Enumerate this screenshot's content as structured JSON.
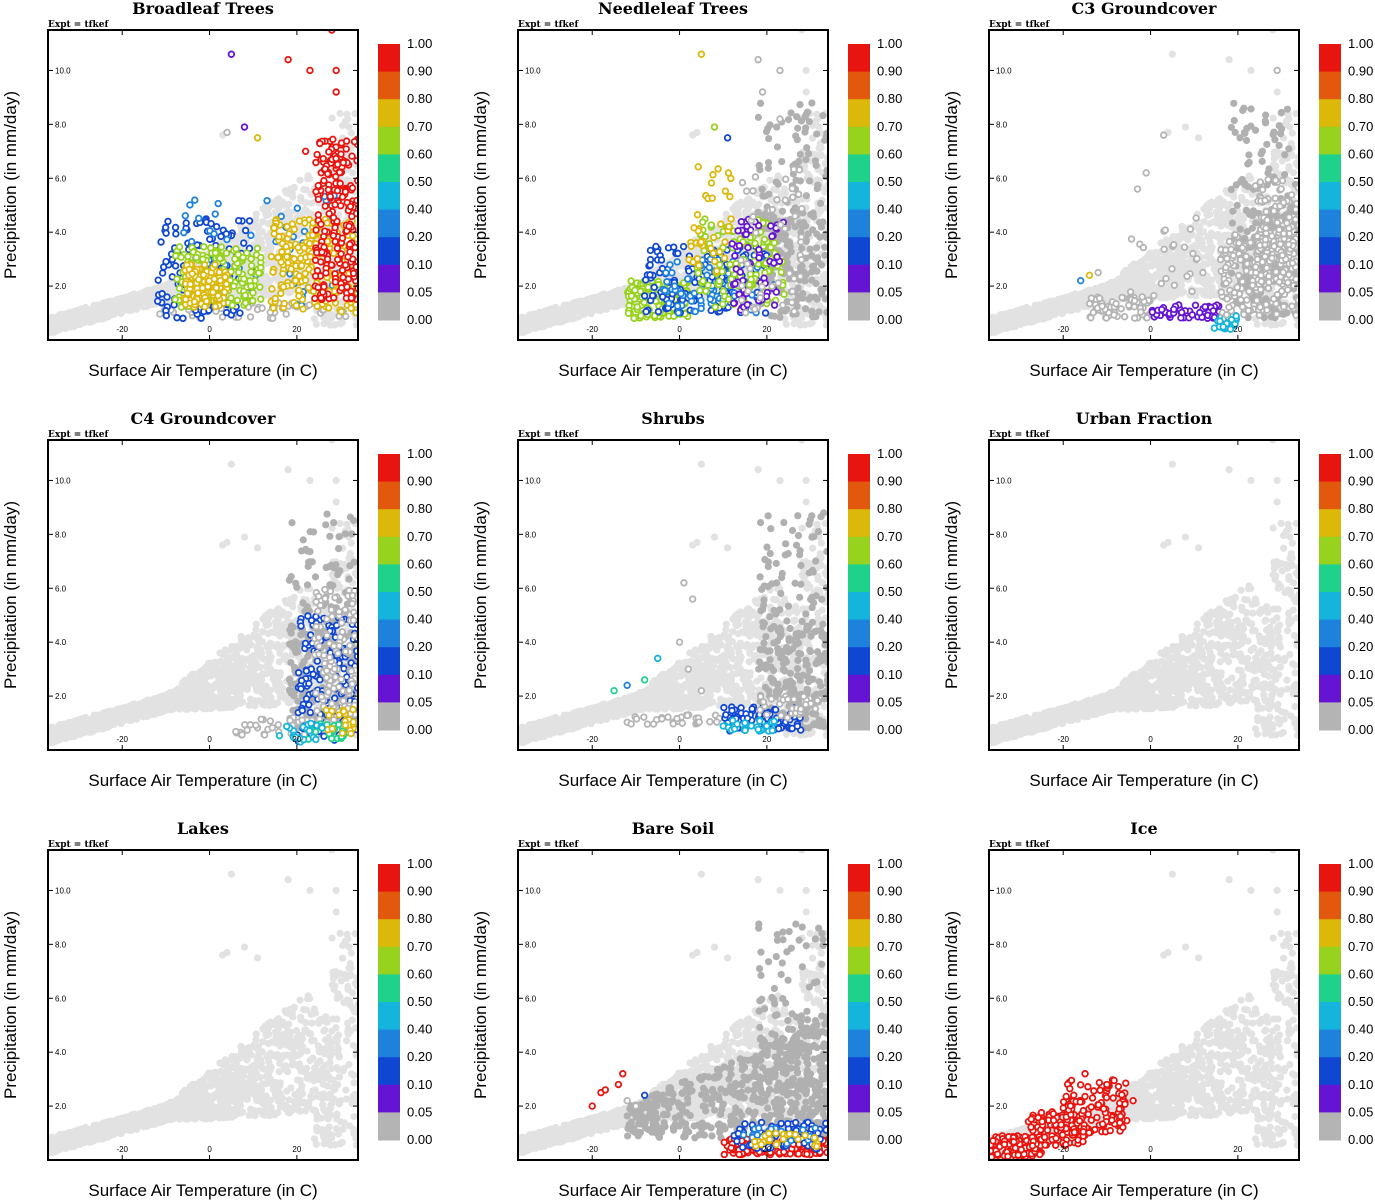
{
  "figure": {
    "expt_label": "Expt = tfkef",
    "colorbar": {
      "labels": [
        "1.00",
        "0.90",
        "0.80",
        "0.70",
        "0.60",
        "0.50",
        "0.40",
        "0.20",
        "0.10",
        "0.05",
        "0.00"
      ],
      "colors": [
        "#e8140f",
        "#e2580d",
        "#dcb80b",
        "#96d21e",
        "#1ed28c",
        "#14b4dc",
        "#1e82dc",
        "#0f46d2",
        "#6414d2",
        "#b4b4b4"
      ]
    }
  },
  "chart_data": [
    {
      "type": "scatter",
      "title": "Broadleaf Trees",
      "xlabel": "Surface Air Temperature (in C)",
      "ylabel": "Precipitation (in mm/day)",
      "xlim": [
        -37,
        34
      ],
      "ylim": [
        0,
        11.5
      ],
      "xticks": [
        "-20",
        "0",
        "20"
      ],
      "yticks": [
        "2.0",
        "4.0",
        "6.0",
        "8.0",
        "10.0"
      ],
      "colored_clusters": [
        {
          "level": 0.05,
          "x": [
            -12,
            32
          ],
          "y": [
            0.8,
            1.4
          ],
          "n": 50
        },
        {
          "level": 0.2,
          "x": [
            -12,
            10
          ],
          "y": [
            0.8,
            4.5
          ],
          "n": 120
        },
        {
          "level": 0.4,
          "x": [
            -6,
            30
          ],
          "y": [
            1.2,
            5.5
          ],
          "n": 60
        },
        {
          "level": 0.7,
          "x": [
            -8,
            12
          ],
          "y": [
            1.2,
            3.5
          ],
          "n": 140
        },
        {
          "level": 0.8,
          "x": [
            -6,
            4
          ],
          "y": [
            1.2,
            2.8
          ],
          "n": 120
        },
        {
          "level": 0.8,
          "x": [
            14,
            34
          ],
          "y": [
            1.0,
            4.5
          ],
          "n": 220
        },
        {
          "level": 1.0,
          "x": [
            24,
            34
          ],
          "y": [
            1.5,
            7.5
          ],
          "n": 220
        }
      ],
      "outliers": [
        {
          "x": 5,
          "y": 10.6,
          "level": 0.1
        },
        {
          "x": 18,
          "y": 10.4,
          "level": 1.0
        },
        {
          "x": 23,
          "y": 10.0,
          "level": 1.0
        },
        {
          "x": 29,
          "y": 10.0,
          "level": 1.0
        },
        {
          "x": 28,
          "y": 11.5,
          "level": 1.0
        },
        {
          "x": 29,
          "y": 9.2,
          "level": 1.0
        },
        {
          "x": 4,
          "y": 7.7,
          "level": 0.05
        },
        {
          "x": 8,
          "y": 7.9,
          "level": 0.1
        },
        {
          "x": 11,
          "y": 7.5,
          "level": 0.8
        },
        {
          "x": 22,
          "y": 7.0,
          "level": 1.0
        }
      ]
    },
    {
      "type": "scatter",
      "title": "Needleleaf Trees",
      "xlabel": "Surface Air Temperature (in C)",
      "ylabel": "Precipitation (in mm/day)",
      "xlim": [
        -37,
        34
      ],
      "ylim": [
        0,
        11.5
      ],
      "xticks": [
        "-20",
        "0",
        "20"
      ],
      "yticks": [
        "2.0",
        "4.0",
        "6.0",
        "8.0",
        "10.0"
      ],
      "colored_clusters": [
        {
          "level": 0.7,
          "x": [
            -12,
            2
          ],
          "y": [
            0.8,
            2.2
          ],
          "n": 150
        },
        {
          "level": 0.2,
          "x": [
            -8,
            20
          ],
          "y": [
            1.0,
            3.5
          ],
          "n": 160
        },
        {
          "level": 0.4,
          "x": [
            -4,
            22
          ],
          "y": [
            1.0,
            3.0
          ],
          "n": 80
        },
        {
          "level": 0.7,
          "x": [
            4,
            24
          ],
          "y": [
            1.2,
            4.5
          ],
          "n": 120
        },
        {
          "level": 0.8,
          "x": [
            2,
            12
          ],
          "y": [
            2.5,
            6.5
          ],
          "n": 40
        },
        {
          "level": 0.1,
          "x": [
            12,
            24
          ],
          "y": [
            1.0,
            4.5
          ],
          "n": 60
        },
        {
          "level": 0.05,
          "x": [
            14,
            28
          ],
          "y": [
            1.0,
            6.5
          ],
          "n": 50
        }
      ],
      "outliers": [
        {
          "x": 5,
          "y": 10.6,
          "level": 0.8
        },
        {
          "x": 18,
          "y": 10.4,
          "level": 0.05
        },
        {
          "x": 23,
          "y": 10.0,
          "level": 0.05
        },
        {
          "x": 19,
          "y": 9.2,
          "level": 0.05
        },
        {
          "x": 8,
          "y": 7.9,
          "level": 0.7
        },
        {
          "x": 11,
          "y": 7.5,
          "level": 0.2
        },
        {
          "x": 23,
          "y": 8.2,
          "level": 0.05
        }
      ]
    },
    {
      "type": "scatter",
      "title": "C3 Groundcover",
      "xlabel": "Surface Air Temperature (in C)",
      "ylabel": "Precipitation (in mm/day)",
      "xlim": [
        -37,
        34
      ],
      "ylim": [
        0,
        11.5
      ],
      "xticks": [
        "-20",
        "0",
        "20"
      ],
      "yticks": [
        "2.0",
        "4.0",
        "6.0",
        "8.0",
        "10.0"
      ],
      "colored_clusters": [
        {
          "level": 0.05,
          "x": [
            -14,
            0
          ],
          "y": [
            0.8,
            1.6
          ],
          "n": 60
        },
        {
          "level": 0.1,
          "x": [
            0,
            16
          ],
          "y": [
            0.8,
            1.3
          ],
          "n": 50
        },
        {
          "level": 0.5,
          "x": [
            14,
            20
          ],
          "y": [
            0.4,
            0.9
          ],
          "n": 25
        },
        {
          "level": 0.05,
          "x": [
            16,
            34
          ],
          "y": [
            0.9,
            4.0
          ],
          "n": 180
        },
        {
          "level": 0.05,
          "x": [
            24,
            34
          ],
          "y": [
            2.0,
            6.0
          ],
          "n": 120
        },
        {
          "level": 0.05,
          "x": [
            -6,
            12
          ],
          "y": [
            1.5,
            5.0
          ],
          "n": 25
        }
      ],
      "outliers": [
        {
          "x": 29,
          "y": 10.0,
          "level": 0.05
        },
        {
          "x": -14,
          "y": 2.4,
          "level": 0.8
        },
        {
          "x": -16,
          "y": 2.2,
          "level": 0.4
        },
        {
          "x": -12,
          "y": 2.5,
          "level": 0.05
        },
        {
          "x": -1,
          "y": 6.2,
          "level": 0.05
        },
        {
          "x": 3,
          "y": 7.6,
          "level": 0.05
        },
        {
          "x": -3,
          "y": 5.6,
          "level": 0.05
        }
      ]
    },
    {
      "type": "scatter",
      "title": "C4 Groundcover",
      "xlabel": "Surface Air Temperature (in C)",
      "ylabel": "Precipitation (in mm/day)",
      "xlim": [
        -37,
        34
      ],
      "ylim": [
        0,
        11.5
      ],
      "xticks": [
        "-20",
        "0",
        "20"
      ],
      "yticks": [
        "2.0",
        "4.0",
        "6.0",
        "8.0",
        "10.0"
      ],
      "colored_clusters": [
        {
          "level": 0.05,
          "x": [
            6,
            26
          ],
          "y": [
            0.5,
            1.2
          ],
          "n": 40
        },
        {
          "level": 0.2,
          "x": [
            20,
            34
          ],
          "y": [
            0.3,
            5.0
          ],
          "n": 160
        },
        {
          "level": 0.05,
          "x": [
            24,
            34
          ],
          "y": [
            1.0,
            6.0
          ],
          "n": 120
        },
        {
          "level": 0.6,
          "x": [
            22,
            32
          ],
          "y": [
            0.4,
            1.0
          ],
          "n": 25
        },
        {
          "level": 0.8,
          "x": [
            26,
            33
          ],
          "y": [
            0.6,
            1.6
          ],
          "n": 20
        },
        {
          "level": 0.5,
          "x": [
            16,
            26
          ],
          "y": [
            0.3,
            1.0
          ],
          "n": 20
        }
      ],
      "outliers": []
    },
    {
      "type": "scatter",
      "title": "Shrubs",
      "xlabel": "Surface Air Temperature (in C)",
      "ylabel": "Precipitation (in mm/day)",
      "xlim": [
        -37,
        34
      ],
      "ylim": [
        0,
        11.5
      ],
      "xticks": [
        "-20",
        "0",
        "20"
      ],
      "yticks": [
        "2.0",
        "4.0",
        "6.0",
        "8.0",
        "10.0"
      ],
      "colored_clusters": [
        {
          "level": 0.05,
          "x": [
            -12,
            10
          ],
          "y": [
            0.9,
            1.3
          ],
          "n": 30
        },
        {
          "level": 0.2,
          "x": [
            10,
            28
          ],
          "y": [
            0.7,
            1.6
          ],
          "n": 80
        },
        {
          "level": 0.5,
          "x": [
            10,
            22
          ],
          "y": [
            0.7,
            1.1
          ],
          "n": 30
        },
        {
          "level": 0.05,
          "x": [
            18,
            32
          ],
          "y": [
            1.2,
            2.0
          ],
          "n": 30
        }
      ],
      "outliers": [
        {
          "x": -15,
          "y": 2.2,
          "level": 0.6
        },
        {
          "x": -12,
          "y": 2.4,
          "level": 0.4
        },
        {
          "x": -8,
          "y": 2.6,
          "level": 0.6
        },
        {
          "x": -5,
          "y": 3.4,
          "level": 0.5
        },
        {
          "x": 0,
          "y": 4.0,
          "level": 0.05
        },
        {
          "x": 3,
          "y": 5.6,
          "level": 0.05
        },
        {
          "x": 1,
          "y": 6.2,
          "level": 0.05
        },
        {
          "x": 2,
          "y": 3.0,
          "level": 0.05
        },
        {
          "x": 5,
          "y": 2.2,
          "level": 0.05
        }
      ]
    },
    {
      "type": "scatter",
      "title": "Urban Fraction",
      "xlabel": "Surface Air Temperature (in C)",
      "ylabel": "Precipitation (in mm/day)",
      "xlim": [
        -37,
        34
      ],
      "ylim": [
        0,
        11.5
      ],
      "xticks": [
        "-20",
        "0",
        "20"
      ],
      "yticks": [
        "2.0",
        "4.0",
        "6.0",
        "8.0",
        "10.0"
      ],
      "colored_clusters": [],
      "outliers": []
    },
    {
      "type": "scatter",
      "title": "Lakes",
      "xlabel": "Surface Air Temperature (in C)",
      "ylabel": "Precipitation (in mm/day)",
      "xlim": [
        -37,
        34
      ],
      "ylim": [
        0,
        11.5
      ],
      "xticks": [
        "-20",
        "0",
        "20"
      ],
      "yticks": [
        "2.0",
        "4.0",
        "6.0",
        "8.0",
        "10.0"
      ],
      "colored_clusters": [],
      "outliers": []
    },
    {
      "type": "scatter",
      "title": "Bare Soil",
      "xlabel": "Surface Air Temperature (in C)",
      "ylabel": "Precipitation (in mm/day)",
      "xlim": [
        -37,
        34
      ],
      "ylim": [
        0,
        11.5
      ],
      "xticks": [
        "-20",
        "0",
        "20"
      ],
      "yticks": [
        "2.0",
        "4.0",
        "6.0",
        "8.0",
        "10.0"
      ],
      "colored_clusters": [
        {
          "level": 1.0,
          "x": [
            10,
            34
          ],
          "y": [
            0.2,
            0.8
          ],
          "n": 180
        },
        {
          "level": 0.2,
          "x": [
            12,
            34
          ],
          "y": [
            0.4,
            1.4
          ],
          "n": 80
        },
        {
          "level": 0.4,
          "x": [
            14,
            32
          ],
          "y": [
            0.6,
            1.2
          ],
          "n": 30
        },
        {
          "level": 0.8,
          "x": [
            16,
            32
          ],
          "y": [
            0.5,
            1.0
          ],
          "n": 25
        }
      ],
      "outliers": [
        {
          "x": -20,
          "y": 2.0,
          "level": 1.0
        },
        {
          "x": -18,
          "y": 2.5,
          "level": 1.0
        },
        {
          "x": -17,
          "y": 2.6,
          "level": 1.0
        },
        {
          "x": -14,
          "y": 2.8,
          "level": 1.0
        },
        {
          "x": -13,
          "y": 3.2,
          "level": 1.0
        },
        {
          "x": -12,
          "y": 2.2,
          "level": 0.05
        },
        {
          "x": -10,
          "y": 2.0,
          "level": 0.05
        },
        {
          "x": -8,
          "y": 2.4,
          "level": 0.2
        }
      ]
    },
    {
      "type": "scatter",
      "title": "Ice",
      "xlabel": "Surface Air Temperature (in C)",
      "ylabel": "Precipitation (in mm/day)",
      "xlim": [
        -37,
        34
      ],
      "ylim": [
        0,
        11.5
      ],
      "xticks": [
        "-20",
        "0",
        "20"
      ],
      "yticks": [
        "2.0",
        "4.0",
        "6.0",
        "8.0",
        "10.0"
      ],
      "colored_clusters": [
        {
          "level": 1.0,
          "x": [
            -37,
            -25
          ],
          "y": [
            0.1,
            0.9
          ],
          "n": 120
        },
        {
          "level": 1.0,
          "x": [
            -28,
            -15
          ],
          "y": [
            0.5,
            1.8
          ],
          "n": 120
        },
        {
          "level": 1.0,
          "x": [
            -20,
            -5
          ],
          "y": [
            1.0,
            3.0
          ],
          "n": 120
        }
      ],
      "outliers": [
        {
          "x": -15,
          "y": 3.2,
          "level": 1.0
        },
        {
          "x": -10,
          "y": 2.8,
          "level": 1.0
        },
        {
          "x": -4,
          "y": 2.2,
          "level": 1.0
        }
      ]
    }
  ]
}
